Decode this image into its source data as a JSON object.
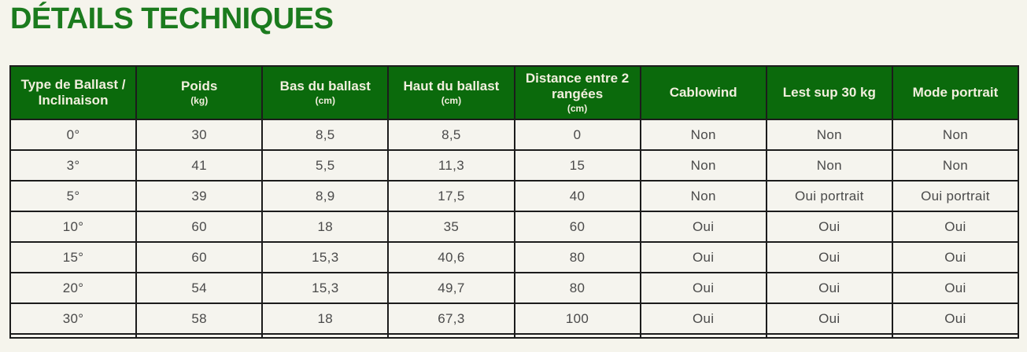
{
  "page": {
    "title": "DÉTAILS TECHNIQUES",
    "colors": {
      "title_green": "#1b7b1e",
      "header_green": "#0b6a0c",
      "header_text": "#f2efde",
      "cell_background": "#f5f4ee",
      "cell_text": "#4a4a4a",
      "border": "#1c1c1c",
      "page_background": "#f5f4ec"
    }
  },
  "table": {
    "columns": [
      {
        "label": "Type de Ballast / Inclinaison",
        "lines": [
          "Type de Ballast /",
          "Inclinaison"
        ],
        "unit": ""
      },
      {
        "label": "Poids",
        "lines": [
          "Poids"
        ],
        "unit": "(kg)"
      },
      {
        "label": "Bas du ballast",
        "lines": [
          "Bas du ballast"
        ],
        "unit": "(cm)"
      },
      {
        "label": "Haut du ballast",
        "lines": [
          "Haut du ballast"
        ],
        "unit": "(cm)"
      },
      {
        "label": "Distance entre 2 rangées",
        "lines": [
          "Distance entre 2",
          "rangées"
        ],
        "unit": "(cm)"
      },
      {
        "label": "Cablowind",
        "lines": [
          "Cablowind"
        ],
        "unit": ""
      },
      {
        "label": "Lest sup 30 kg",
        "lines": [
          "Lest sup 30 kg"
        ],
        "unit": ""
      },
      {
        "label": "Mode portrait",
        "lines": [
          "Mode portrait"
        ],
        "unit": ""
      }
    ],
    "rows": [
      [
        "0°",
        "30",
        "8,5",
        "8,5",
        "0",
        "Non",
        "Non",
        "Non"
      ],
      [
        "3°",
        "41",
        "5,5",
        "11,3",
        "15",
        "Non",
        "Non",
        "Non"
      ],
      [
        "5°",
        "39",
        "8,9",
        "17,5",
        "40",
        "Non",
        "Oui portrait",
        "Oui portrait"
      ],
      [
        "10°",
        "60",
        "18",
        "35",
        "60",
        "Oui",
        "Oui",
        "Oui"
      ],
      [
        "15°",
        "60",
        "15,3",
        "40,6",
        "80",
        "Oui",
        "Oui",
        "Oui"
      ],
      [
        "20°",
        "54",
        "15,3",
        "49,7",
        "80",
        "Oui",
        "Oui",
        "Oui"
      ],
      [
        "30°",
        "58",
        "18",
        "67,3",
        "100",
        "Oui",
        "Oui",
        "Oui"
      ]
    ],
    "has_partial_next_row": true
  }
}
